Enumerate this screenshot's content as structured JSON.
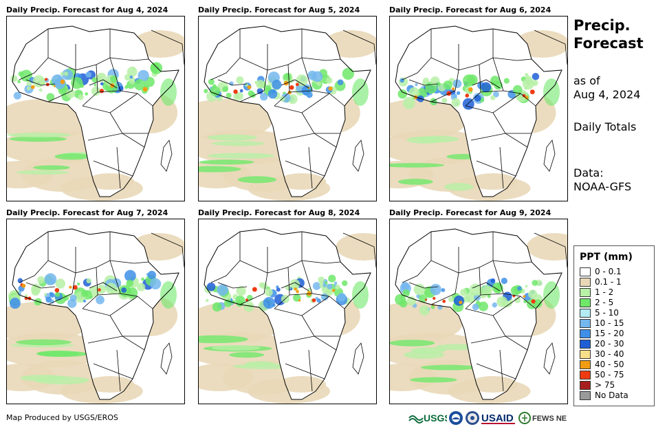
{
  "panels": [
    {
      "title": "Daily Precip. Forecast for Aug 4, 2024"
    },
    {
      "title": "Daily Precip. Forecast for Aug 5, 2024"
    },
    {
      "title": "Daily Precip. Forecast for Aug 6, 2024"
    },
    {
      "title": "Daily Precip. Forecast for Aug 7, 2024"
    },
    {
      "title": "Daily Precip. Forecast for Aug 8, 2024"
    },
    {
      "title": "Daily Precip. Forecast for Aug 9, 2024"
    }
  ],
  "sidebar": {
    "title_line1": "Precip.",
    "title_line2": "Forecast",
    "asof_line1": "as of",
    "asof_line2": "Aug 4, 2024",
    "totals": "Daily Totals",
    "data_line1": "Data:",
    "data_line2": "NOAA-GFS"
  },
  "legend": {
    "title": "PPT (mm)",
    "items": [
      {
        "label": "0 - 0.1",
        "color": "#ffffff"
      },
      {
        "label": "0.1 - 1",
        "color": "#e9d8b8"
      },
      {
        "label": "1 - 2",
        "color": "#b7f0a6"
      },
      {
        "label": "2 - 5",
        "color": "#6fe86a"
      },
      {
        "label": "5 - 10",
        "color": "#b3ecf4"
      },
      {
        "label": "10 - 15",
        "color": "#74b7ef"
      },
      {
        "label": "15 - 20",
        "color": "#3e8fe8"
      },
      {
        "label": "20 - 30",
        "color": "#1f5fd6"
      },
      {
        "label": "30 - 40",
        "color": "#f7df8a"
      },
      {
        "label": "40 - 50",
        "color": "#f29c14"
      },
      {
        "label": "50 - 75",
        "color": "#ee3b12"
      },
      {
        "label": "> 75",
        "color": "#a71e1e"
      },
      {
        "label": "No Data",
        "color": "#9a9a9a"
      }
    ]
  },
  "footer": {
    "credit": "Map Produced by USGS/EROS"
  },
  "logos": {
    "usgs": "USGS",
    "usaid": "USAID",
    "fews": "FEWS NET"
  }
}
